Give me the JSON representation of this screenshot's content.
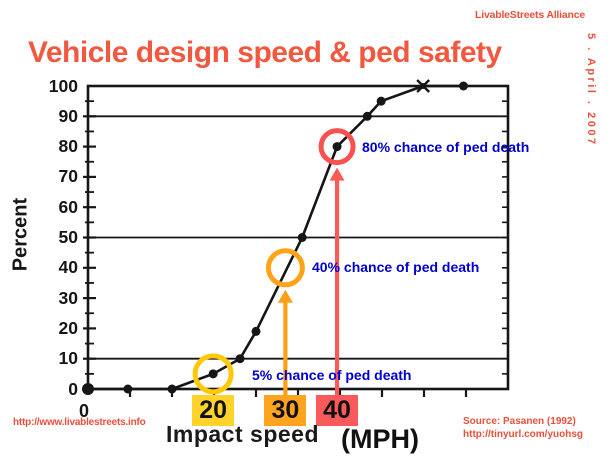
{
  "header": {
    "org": "LivableStreets Alliance",
    "date": "5 . April . 2007",
    "title": "Vehicle design speed & ped safety",
    "accent_color": "#e8503c",
    "title_color": "#f0583f"
  },
  "chart_data": {
    "type": "line",
    "title": "Vehicle design speed & ped safety",
    "xlabel": "Impact speed",
    "x_unit": "(MPH)",
    "ylabel": "Percent",
    "ylim": [
      0,
      100
    ],
    "y_ticks": [
      100,
      90,
      80,
      70,
      60,
      50,
      40,
      30,
      20,
      10,
      0
    ],
    "y_minor_step": 5,
    "gridlines_at_pct": [
      10,
      50,
      90
    ],
    "grid": "partial-horizontal",
    "legend": "none",
    "x_origin_label": "0",
    "x_labels": [
      {
        "label": "20",
        "box_color": "#ffd32a",
        "xf": 0.298
      },
      {
        "label": "30",
        "box_color": "#ffa41e",
        "xf": 0.47
      },
      {
        "label": "40",
        "box_color": "#fa5a5c",
        "xf": 0.593
      }
    ],
    "curve": {
      "name": "Chance of pedestrian death vs impact speed",
      "color": "#161616",
      "points": [
        [
          0.0,
          0
        ],
        [
          0.095,
          0
        ],
        [
          0.2,
          0
        ],
        [
          0.298,
          5
        ],
        [
          0.362,
          10
        ],
        [
          0.4,
          19
        ],
        [
          0.51,
          50
        ],
        [
          0.593,
          80
        ],
        [
          0.665,
          90
        ],
        [
          0.698,
          95
        ],
        [
          0.798,
          100
        ],
        [
          0.894,
          100
        ]
      ],
      "x_marker_index": 10
    },
    "highlights": [
      {
        "pct": 5,
        "xf": 0.298,
        "ring_color": "#ffc90b",
        "ring_r": 18,
        "label": "5% chance of ped death",
        "has_arrow": false
      },
      {
        "pct": 40,
        "xf": 0.47,
        "ring_color": "#ffa418",
        "ring_r": 17,
        "label": "40% chance of ped death",
        "has_arrow": true,
        "arrow_color": "#ffa018"
      },
      {
        "pct": 80,
        "xf": 0.593,
        "ring_color": "#f8514f",
        "ring_r": 16,
        "label": "80% chance of ped death",
        "has_arrow": true,
        "arrow_color": "#f85b59"
      }
    ],
    "annotation_color": "#0000cc"
  },
  "footer": {
    "site_url": "http://www.livablestreets.info",
    "source_line1": "Source: Pasanen (1992)",
    "source_line2": "http://tinyurl.com/yuohsg",
    "color": "#e8503c"
  }
}
